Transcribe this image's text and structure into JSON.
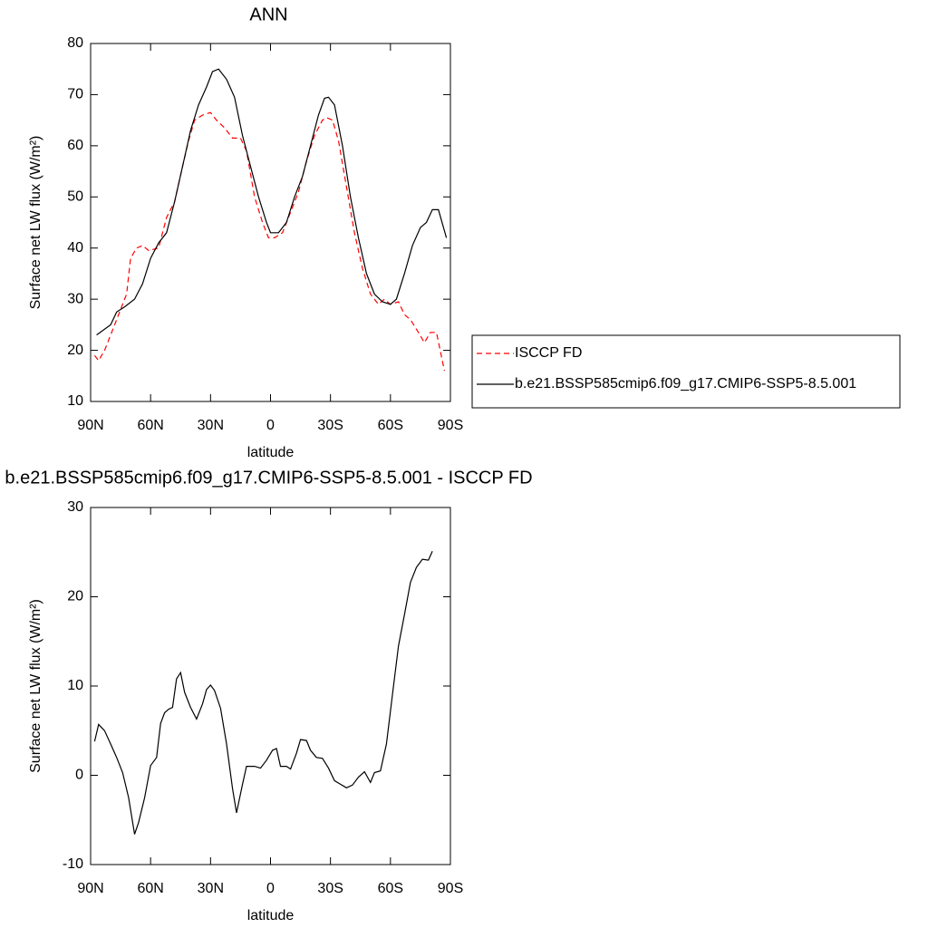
{
  "chart_data": [
    {
      "type": "line",
      "title": "ANN",
      "xlabel": "latitude",
      "ylabel": "Surface net LW flux (W/m²)",
      "xlim": [
        90,
        -90
      ],
      "xticks": [
        {
          "value": 90,
          "label": "90N"
        },
        {
          "value": 60,
          "label": "60N"
        },
        {
          "value": 30,
          "label": "30N"
        },
        0,
        {
          "value": -30,
          "label": "30S"
        },
        {
          "value": -60,
          "label": "60S"
        },
        {
          "value": -90,
          "label": "90S"
        }
      ],
      "ylim": [
        10,
        80
      ],
      "yticks": [
        10,
        20,
        30,
        40,
        50,
        60,
        70,
        80
      ],
      "legend": "right",
      "series": [
        {
          "name": "ISCCP FD",
          "color": "#ff0000",
          "line_style": "dashed",
          "x": [
            88,
            86,
            83,
            80,
            76,
            72,
            70,
            67,
            64,
            61,
            56,
            52,
            48,
            44,
            41,
            38,
            34,
            30,
            27,
            23,
            19,
            15,
            12,
            8,
            4,
            1,
            -2,
            -6,
            -10,
            -14,
            -18,
            -22,
            -26,
            -28,
            -31,
            -34,
            -38,
            -42,
            -46,
            -50,
            -54,
            -57,
            -60,
            -64,
            -67,
            -70,
            -74,
            -77,
            -80,
            -83,
            -87
          ],
          "values": [
            19,
            18,
            20,
            23,
            27,
            31,
            38,
            40,
            40.5,
            39.5,
            40,
            46,
            49,
            56,
            61,
            65,
            66,
            66.5,
            65,
            63.5,
            61.5,
            61.5,
            59,
            50,
            45,
            42,
            42,
            43,
            47,
            51,
            57,
            62,
            65,
            65.5,
            65,
            61,
            52,
            43,
            36,
            31,
            29,
            30,
            29,
            29.5,
            27,
            26,
            23.5,
            21.5,
            23.5,
            23.5,
            16
          ]
        },
        {
          "name": "b.e21.BSSP585cmip6.f09_g17.CMIP6-SSP5-8.5.001",
          "color": "#000000",
          "line_style": "solid",
          "x": [
            87,
            80,
            77,
            73,
            68,
            64,
            60,
            56,
            52,
            48,
            44,
            40,
            36,
            32,
            29,
            26,
            22,
            18,
            14,
            10,
            6,
            2,
            0,
            -4,
            -8,
            -12,
            -16,
            -20,
            -24,
            -27,
            -29,
            -32,
            -36,
            -40,
            -44,
            -48,
            -52,
            -56,
            -60,
            -63,
            -67,
            -71,
            -75,
            -78,
            -81,
            -84,
            -88
          ],
          "values": [
            23,
            25,
            27.5,
            28.5,
            30,
            33,
            38,
            41,
            43,
            49,
            56,
            63,
            68,
            71.5,
            74.5,
            75,
            73,
            69.5,
            62,
            56,
            50,
            45,
            43,
            43,
            45,
            50,
            54,
            60,
            66,
            69.3,
            69.5,
            68,
            60,
            50,
            42,
            35,
            31,
            29.5,
            29,
            30,
            35,
            40.5,
            44,
            45,
            47.5,
            47.5,
            42
          ]
        }
      ]
    },
    {
      "type": "line",
      "title": "b.e21.BSSP585cmip6.f09_g17.CMIP6-SSP5-8.5.001 - ISCCP FD",
      "xlabel": "latitude",
      "ylabel": "Surface net LW flux (W/m²)",
      "xlim": [
        90,
        -90
      ],
      "xticks": [
        {
          "value": 90,
          "label": "90N"
        },
        {
          "value": 60,
          "label": "60N"
        },
        {
          "value": 30,
          "label": "30N"
        },
        0,
        {
          "value": -30,
          "label": "30S"
        },
        {
          "value": -60,
          "label": "60S"
        },
        {
          "value": -90,
          "label": "90S"
        }
      ],
      "ylim": [
        -10,
        30
      ],
      "yticks": [
        -10,
        0,
        10,
        20,
        30
      ],
      "color": "#000000",
      "x": [
        88,
        86,
        83,
        80,
        77,
        74,
        71,
        68,
        66,
        63,
        60,
        57,
        55,
        53,
        51,
        49,
        47,
        45,
        43,
        40,
        37,
        34,
        32,
        30,
        28,
        25,
        22,
        19,
        17,
        14,
        12,
        8,
        5,
        2,
        -1,
        -3,
        -5,
        -8,
        -10,
        -13,
        -15,
        -18,
        -20,
        -23,
        -26,
        -29,
        -32,
        -35,
        -38,
        -41,
        -44,
        -47,
        -50,
        -52,
        -55,
        -58,
        -61,
        -64,
        -67,
        -70,
        -73,
        -76,
        -79,
        -81
      ],
      "values": [
        3.8,
        5.7,
        5,
        3.5,
        2,
        0.3,
        -2.5,
        -6.6,
        -5.3,
        -2.5,
        1.1,
        2,
        5.8,
        7,
        7.4,
        7.6,
        10.8,
        11.5,
        9.3,
        7.6,
        6.3,
        8,
        9.6,
        10.1,
        9.5,
        7.5,
        3.5,
        -1.5,
        -4.2,
        -1,
        1,
        1,
        0.8,
        1.7,
        2.8,
        3,
        1,
        1,
        0.7,
        2.5,
        4,
        3.9,
        2.8,
        2,
        1.9,
        0.8,
        -0.6,
        -1,
        -1.4,
        -1.1,
        -0.2,
        0.4,
        -0.8,
        0.3,
        0.5,
        3.5,
        9,
        14.5,
        18,
        21.6,
        23.3,
        24.2,
        24.1,
        25.1
      ]
    }
  ]
}
